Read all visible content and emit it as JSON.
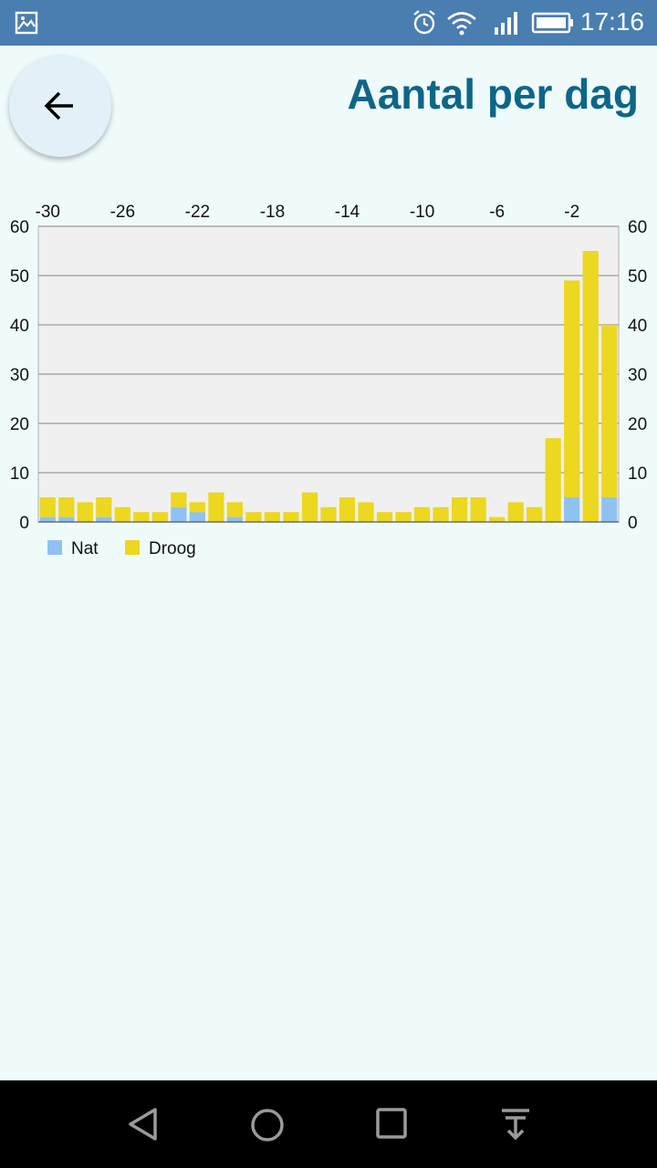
{
  "status_bar": {
    "time": "17:16",
    "icons": [
      "gallery-icon",
      "alarm-icon",
      "wifi-icon",
      "signal-icon",
      "battery-icon"
    ]
  },
  "header": {
    "title": "Aantal per dag",
    "back_icon": "arrow-left-icon"
  },
  "colors": {
    "background": "#effbfb",
    "title": "#0e6687",
    "nat": "#8fc2f0",
    "droog": "#ecd721",
    "plot_bg": "#f0f0f0",
    "grid": "#9a9a9a",
    "status_bar": "#4a7db0"
  },
  "chart_data": {
    "type": "bar",
    "stacked": true,
    "x": [
      -30,
      -29,
      -28,
      -27,
      -26,
      -25,
      -24,
      -23,
      -22,
      -21,
      -20,
      -19,
      -18,
      -17,
      -16,
      -15,
      -14,
      -13,
      -12,
      -11,
      -10,
      -9,
      -8,
      -7,
      -6,
      -5,
      -4,
      -3,
      -2,
      -1,
      0
    ],
    "x_ticks": [
      -30,
      -26,
      -22,
      -18,
      -14,
      -10,
      -6,
      -2
    ],
    "x_tick_labels": [
      "-30",
      "-26",
      "-22",
      "-18",
      "-14",
      "-10",
      "-6",
      "-2"
    ],
    "xaxis_position": "top",
    "y_ticks": [
      0,
      10,
      20,
      30,
      40,
      50,
      60
    ],
    "y_tick_labels": [
      "0",
      "10",
      "20",
      "30",
      "40",
      "50",
      "60"
    ],
    "ylim": [
      0,
      60
    ],
    "yaxis": "both",
    "grid": true,
    "legend": "bottom-left",
    "series": [
      {
        "name": "Nat",
        "color": "#8fc2f0",
        "values": [
          1,
          1,
          0,
          1,
          0,
          0,
          0,
          3,
          2,
          0,
          1,
          0,
          0,
          0,
          0,
          0,
          0,
          0,
          0,
          0,
          0,
          0,
          0,
          0,
          0,
          0,
          0,
          0,
          5,
          0,
          5
        ]
      },
      {
        "name": "Droog",
        "color": "#ecd721",
        "values": [
          4,
          4,
          4,
          4,
          3,
          2,
          2,
          3,
          2,
          6,
          3,
          2,
          2,
          2,
          6,
          3,
          5,
          4,
          2,
          2,
          3,
          3,
          5,
          5,
          1,
          4,
          3,
          17,
          44,
          55,
          35
        ]
      }
    ]
  },
  "nav_bar": {
    "icons": [
      "back-triangle-icon",
      "home-circle-icon",
      "recents-square-icon",
      "notification-pull-icon"
    ]
  }
}
